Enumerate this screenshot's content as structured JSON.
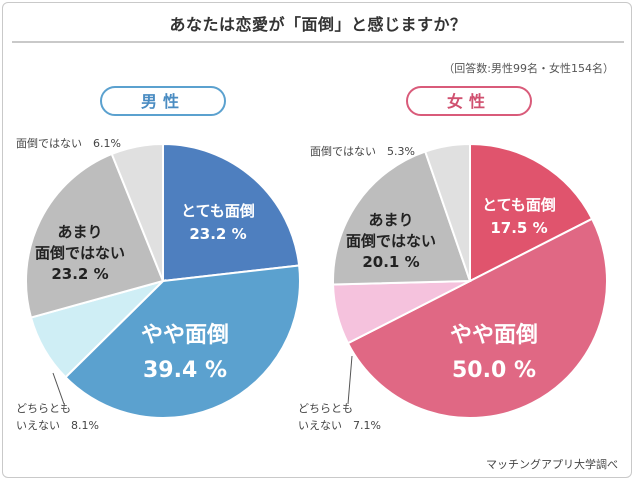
{
  "title": "あなたは恋愛が「面倒」と感じますか？",
  "source_note": "（回答数:男性99名・女性154名）",
  "credit": "マッチングアプリ大学調べ",
  "colors": {
    "male": [
      "#4e7fbf",
      "#5ba1cf",
      "#cfeef5",
      "#bdbdbd",
      "#e0e0e0"
    ],
    "female": [
      "#e0546d",
      "#e06884",
      "#f5c2dd",
      "#bdbdbd",
      "#e0e0e0"
    ]
  },
  "chart_data": [
    {
      "type": "pie",
      "title": "男性",
      "categories": [
        "とても面倒",
        "やや面倒",
        "どちらともいえない",
        "あまり面倒ではない",
        "面倒ではない"
      ],
      "values": [
        23.2,
        39.4,
        8.1,
        23.2,
        6.1
      ],
      "labels": [
        "とても面倒\n23.2 %",
        "やや面倒\n39.4 %",
        "どちらとも\nいえない　8.1%",
        "あまり\n面倒ではない\n23.2 %",
        "面倒ではない　6.1%"
      ]
    },
    {
      "type": "pie",
      "title": "女性",
      "categories": [
        "とても面倒",
        "やや面倒",
        "どちらともいえない",
        "あまり面倒ではない",
        "面倒ではない"
      ],
      "values": [
        17.5,
        50.0,
        7.1,
        20.1,
        5.3
      ],
      "labels": [
        "とても面倒\n17.5 %",
        "やや面倒\n50.0 %",
        "どちらとも\nいえない　7.1%",
        "あまり\n面倒ではない\n20.1 %",
        "面倒ではない　5.3%"
      ]
    }
  ]
}
